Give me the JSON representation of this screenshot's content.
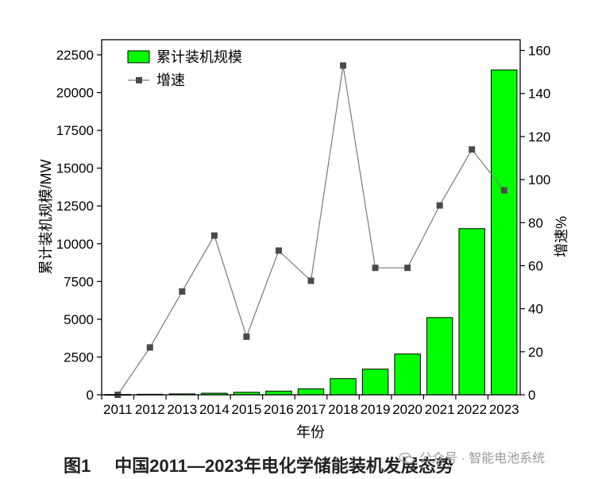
{
  "chart_data": {
    "type": "bar",
    "categories": [
      "2011",
      "2012",
      "2013",
      "2014",
      "2015",
      "2016",
      "2017",
      "2018",
      "2019",
      "2020",
      "2021",
      "2022",
      "2023"
    ],
    "series": [
      {
        "name": "累计装机规模",
        "type": "bar",
        "axis": "left",
        "color": "#00ff00",
        "values": [
          20,
          35,
          60,
          105,
          165,
          245,
          390,
          1070,
          1700,
          2700,
          5110,
          11000,
          21500
        ]
      },
      {
        "name": "增速",
        "type": "line",
        "axis": "right",
        "color": "#7a7a7a",
        "values": [
          0,
          22,
          48,
          74,
          27,
          67,
          53,
          153,
          59,
          59,
          88,
          114,
          95
        ]
      }
    ],
    "xlabel": "年份",
    "ylabel": "累计装机规模/MW",
    "ylabel_right": "增速%",
    "ylim": [
      0,
      23500
    ],
    "ylim_right": [
      0,
      165
    ],
    "yticks": [
      "0",
      "2500",
      "5000",
      "7500",
      "10000",
      "12500",
      "15000",
      "17500",
      "20000",
      "22500"
    ],
    "yticks_right": [
      "0",
      "20",
      "40",
      "60",
      "80",
      "100",
      "120",
      "140",
      "160"
    ],
    "legend_position": "top-left",
    "grid": false
  },
  "caption": {
    "figure_number": "图1",
    "text": "中国2011—2023年电化学储能装机发展态势"
  },
  "watermark": {
    "text": "公众号 · 智能电池系统",
    "icon": "wechat-icon"
  }
}
